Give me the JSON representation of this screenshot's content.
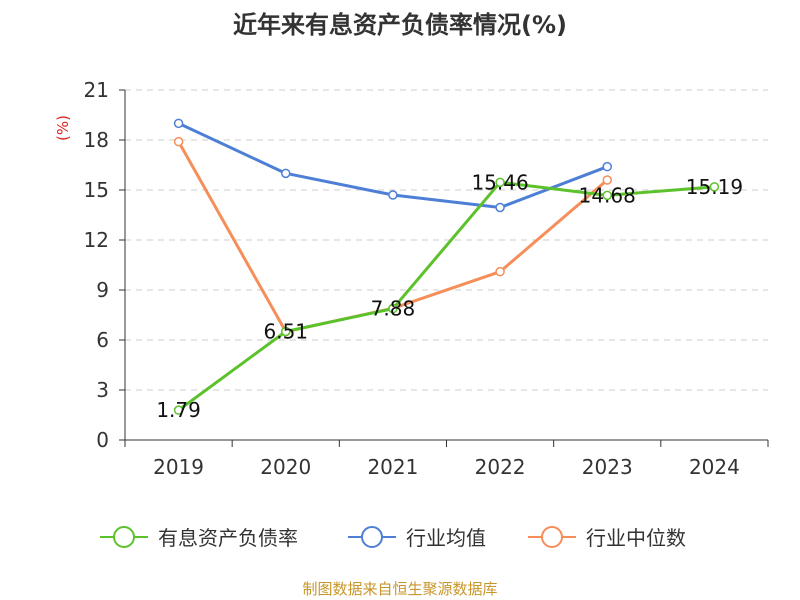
{
  "chart_data": {
    "type": "line",
    "title": "近年来有息资产负债率情况(%)",
    "ylabel": "(%)",
    "xlabel": "",
    "categories": [
      "2019",
      "2020",
      "2021",
      "2022",
      "2023",
      "2024"
    ],
    "ylim": [
      0,
      21
    ],
    "yticks": [
      0,
      3,
      6,
      9,
      12,
      15,
      18,
      21
    ],
    "grid": "horizontal dashed",
    "legend_position": "bottom",
    "series": [
      {
        "name": "有息资产负债率",
        "color": "#5cc22b",
        "values": [
          1.79,
          6.51,
          7.88,
          15.46,
          14.68,
          15.19
        ],
        "labels": [
          "1.79",
          "6.51",
          "7.88",
          "15.46",
          "14.68",
          "15.19"
        ]
      },
      {
        "name": "行业均值",
        "color": "#4e7fd6",
        "values": [
          19.0,
          16.0,
          14.7,
          13.95,
          16.4,
          null
        ]
      },
      {
        "name": "行业中位数",
        "color": "#f68e5a",
        "values": [
          17.9,
          6.5,
          7.9,
          10.1,
          15.6,
          null
        ]
      }
    ]
  },
  "source_text": "制图数据来自恒生聚源数据库"
}
